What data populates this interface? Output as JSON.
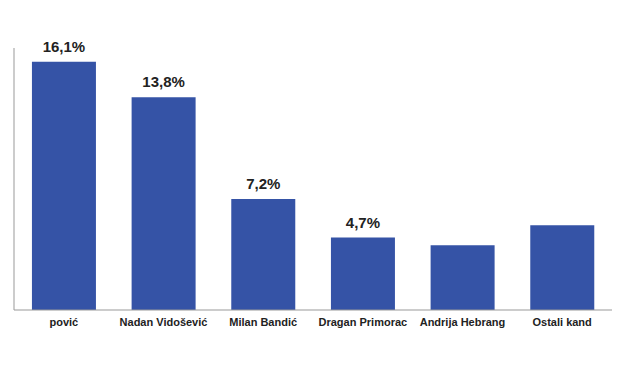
{
  "chart_data": {
    "type": "bar",
    "categories": [
      "pović",
      "Nadan Vidošević",
      "Milan Bandić",
      "Dragan Primorac",
      "Andrija Hebrang",
      "Ostali kand"
    ],
    "values": [
      16.1,
      13.8,
      7.2,
      4.7,
      4.2,
      5.5
    ],
    "value_labels": [
      "16,1%",
      "13,8%",
      "7,2%",
      "4,7%",
      null,
      null
    ],
    "data_labels": true,
    "color": "#3553a6",
    "ylim": [
      0,
      17
    ],
    "grid": false,
    "tick_labels": "x"
  }
}
